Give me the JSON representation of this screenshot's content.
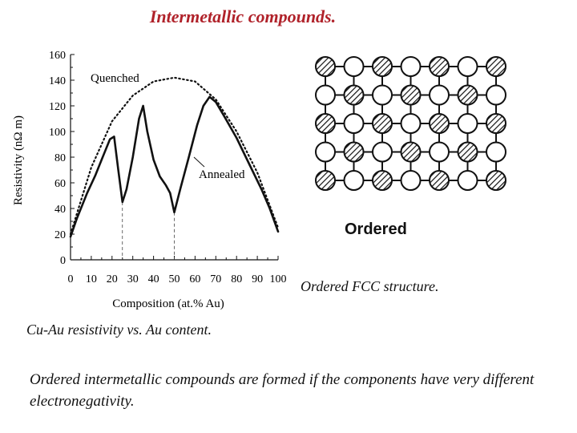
{
  "slide": {
    "title": "Intermetallic compounds.",
    "chart_caption": "Cu-Au resistivity vs. Au content.",
    "fcc_caption": "Ordered FCC structure.",
    "fcc_label": "Ordered",
    "body_text": "Ordered intermetallic compounds are formed if the components have very different electronegativity."
  },
  "colors": {
    "title": "#b0222a",
    "curve": "#111111"
  },
  "lattice": {
    "rows": [
      [
        "hatched",
        "open",
        "hatched",
        "open",
        "hatched",
        "open",
        "hatched"
      ],
      [
        "open",
        "hatched",
        "open",
        "hatched",
        "open",
        "hatched",
        "open"
      ],
      [
        "hatched",
        "open",
        "hatched",
        "open",
        "hatched",
        "open",
        "hatched"
      ],
      [
        "open",
        "hatched",
        "open",
        "hatched",
        "open",
        "hatched",
        "open"
      ],
      [
        "hatched",
        "open",
        "hatched",
        "open",
        "hatched",
        "open",
        "hatched"
      ]
    ]
  },
  "chart_data": {
    "type": "line",
    "xlabel": "Composition (at.% Au)",
    "ylabel": "Resistivity (nΩ m)",
    "xlim": [
      0,
      100
    ],
    "ylim": [
      0,
      160
    ],
    "xticks": [
      0,
      10,
      20,
      30,
      40,
      50,
      60,
      70,
      80,
      90,
      100
    ],
    "yticks": [
      0,
      20,
      40,
      60,
      80,
      100,
      120,
      140,
      160
    ],
    "grid": false,
    "guides_x": [
      25,
      50
    ],
    "series": [
      {
        "name": "Quenched",
        "style": "dotted",
        "x": [
          0,
          10,
          20,
          30,
          40,
          50,
          60,
          70,
          80,
          90,
          100
        ],
        "y": [
          20,
          72,
          108,
          128,
          139,
          142,
          139,
          125,
          100,
          68,
          25
        ]
      },
      {
        "name": "Annealed",
        "style": "solid",
        "x": [
          0,
          3,
          8,
          12,
          16,
          19,
          21,
          23,
          25,
          27,
          30,
          33,
          35,
          37,
          40,
          43,
          46,
          48,
          50,
          53,
          57,
          61,
          64,
          67,
          70,
          74,
          80,
          86,
          92,
          96,
          100
        ],
        "y": [
          18,
          32,
          52,
          66,
          82,
          94,
          96,
          70,
          45,
          55,
          80,
          110,
          120,
          100,
          78,
          65,
          58,
          52,
          37,
          56,
          80,
          105,
          120,
          127,
          123,
          112,
          95,
          75,
          55,
          40,
          22
        ]
      }
    ],
    "annotations": [
      "Quenched",
      "Annealed"
    ]
  }
}
